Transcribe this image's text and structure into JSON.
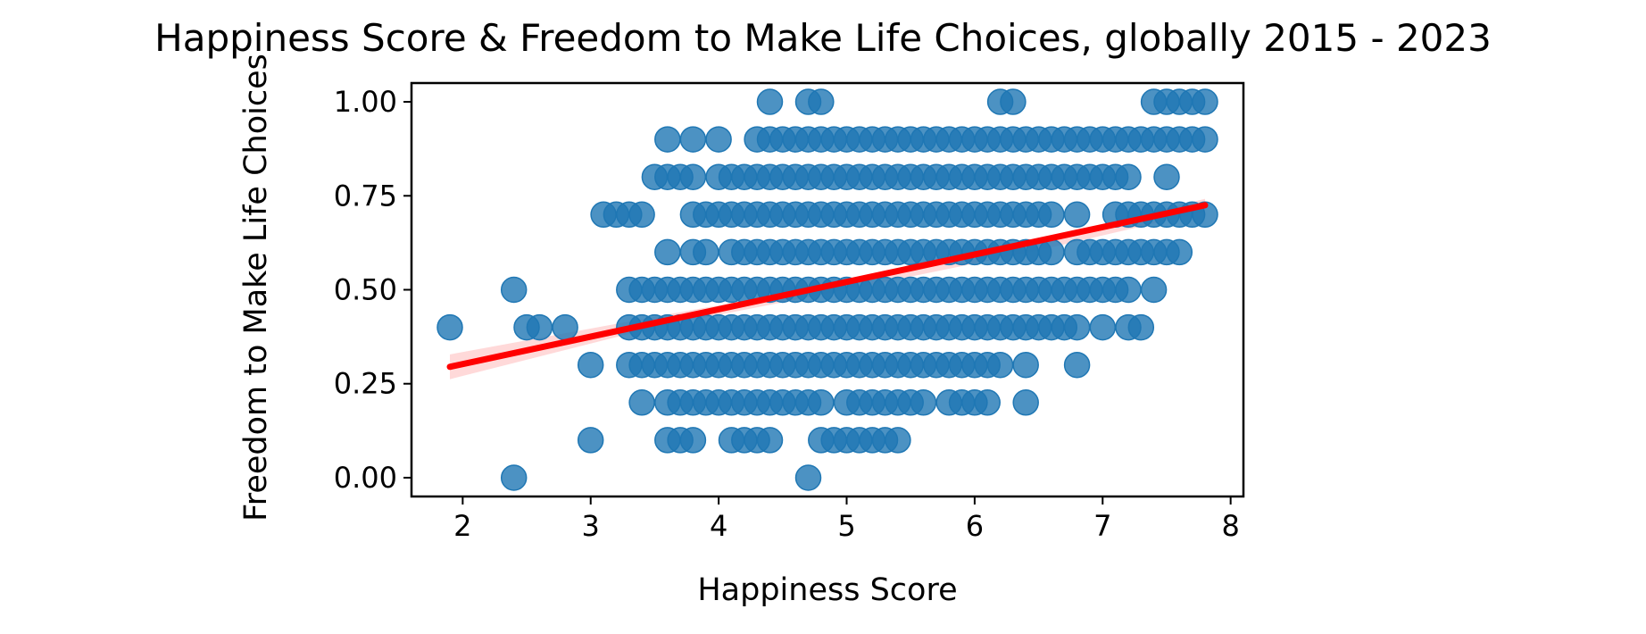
{
  "chart_data": {
    "type": "scatter",
    "title": "Happiness Score & Freedom to Make Life Choices, globally 2015 - 2023",
    "xlabel": "Happiness Score",
    "ylabel": "Freedom to Make Life Choices",
    "xlim": [
      1.6,
      8.1
    ],
    "ylim": [
      -0.05,
      1.05
    ],
    "xticks": [
      "2",
      "3",
      "4",
      "5",
      "6",
      "7",
      "8"
    ],
    "yticks": [
      "0.00",
      "0.25",
      "0.50",
      "0.75",
      "1.00"
    ],
    "grid": false,
    "legend": "none",
    "colors": {
      "points": "#1f77b4",
      "regression": "#ff0000",
      "confidence_band": "#ffbfbf"
    },
    "regression": {
      "x": [
        1.9,
        7.8
      ],
      "y": [
        0.295,
        0.725
      ]
    },
    "confidence_band": {
      "x": [
        1.9,
        3.5,
        5.0,
        6.5,
        7.8
      ],
      "lower": [
        0.262,
        0.4,
        0.5,
        0.605,
        0.708
      ],
      "upper": [
        0.328,
        0.428,
        0.52,
        0.63,
        0.742
      ]
    },
    "rows": [
      {
        "y": 1.0,
        "ranges": [
          [
            4.4,
            4.4
          ],
          [
            4.7,
            4.8
          ],
          [
            6.2,
            6.3
          ],
          [
            7.4,
            7.8
          ]
        ]
      },
      {
        "y": 0.9,
        "ranges": [
          [
            3.6,
            3.6
          ],
          [
            3.8,
            3.8
          ],
          [
            4.0,
            4.0
          ],
          [
            4.3,
            7.8
          ]
        ]
      },
      {
        "y": 0.8,
        "ranges": [
          [
            3.5,
            3.8
          ],
          [
            4.0,
            7.2
          ],
          [
            7.5,
            7.5
          ]
        ]
      },
      {
        "y": 0.7,
        "ranges": [
          [
            3.1,
            3.4
          ],
          [
            3.8,
            6.6
          ],
          [
            6.8,
            6.8
          ],
          [
            7.1,
            7.8
          ]
        ]
      },
      {
        "y": 0.6,
        "ranges": [
          [
            3.6,
            3.6
          ],
          [
            3.8,
            3.9
          ],
          [
            4.1,
            6.6
          ],
          [
            6.8,
            7.6
          ]
        ]
      },
      {
        "y": 0.5,
        "ranges": [
          [
            2.4,
            2.4
          ],
          [
            3.3,
            7.2
          ],
          [
            7.4,
            7.4
          ]
        ]
      },
      {
        "y": 0.4,
        "ranges": [
          [
            1.9,
            1.9
          ],
          [
            2.5,
            2.6
          ],
          [
            2.8,
            2.8
          ],
          [
            3.3,
            6.8
          ],
          [
            7.0,
            7.0
          ],
          [
            7.2,
            7.3
          ]
        ]
      },
      {
        "y": 0.3,
        "ranges": [
          [
            3.0,
            3.0
          ],
          [
            3.3,
            6.2
          ],
          [
            6.4,
            6.4
          ],
          [
            6.8,
            6.8
          ]
        ]
      },
      {
        "y": 0.2,
        "ranges": [
          [
            3.4,
            3.4
          ],
          [
            3.6,
            4.8
          ],
          [
            5.0,
            5.6
          ],
          [
            5.8,
            6.1
          ],
          [
            6.4,
            6.4
          ]
        ]
      },
      {
        "y": 0.1,
        "ranges": [
          [
            3.0,
            3.0
          ],
          [
            3.6,
            3.8
          ],
          [
            4.1,
            4.4
          ],
          [
            4.8,
            5.4
          ]
        ]
      },
      {
        "y": 0.0,
        "ranges": [
          [
            2.4,
            2.4
          ],
          [
            4.7,
            4.7
          ]
        ]
      }
    ]
  }
}
